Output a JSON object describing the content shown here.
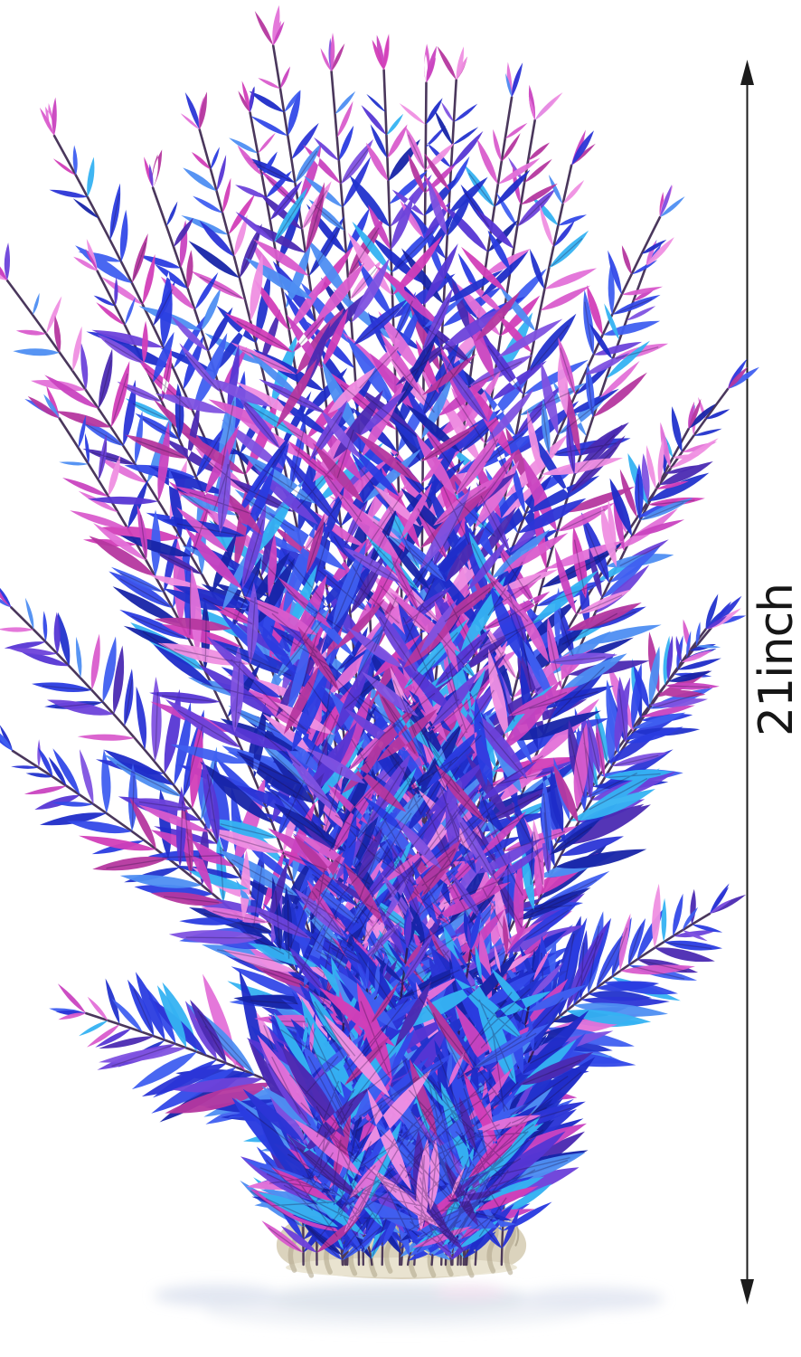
{
  "scene": {
    "background": "#ffffff",
    "subject": "Artificial aquarium plastic plant with blue, purple and pink leaves on a textured sand-colored round base"
  },
  "annotation": {
    "label": "21inch",
    "arrow_color": "#1c1c1c",
    "text_color": "#161616"
  },
  "palette": {
    "leaf_blues": [
      "#1f2cc8",
      "#2a3ce0",
      "#3349e8",
      "#1724a8",
      "#3f5ff0",
      "#2b35d6",
      "#2233cc",
      "#4e8ef2",
      "#35b2f2"
    ],
    "leaf_purples": [
      "#5636d4",
      "#6d42da",
      "#8052e0",
      "#4b2ab2"
    ],
    "leaf_pinks": [
      "#c943c0",
      "#d95ccc",
      "#e371d8",
      "#b5379f",
      "#ef8fe2",
      "#d23eb8"
    ],
    "stem": "#2a1440",
    "midrib": "rgba(30,12,60,0.30)"
  },
  "base": {
    "fill": "#dbd3bd",
    "ridge": "#b2a88e",
    "crevice": "#948a72",
    "highlight": "#eae4d2",
    "reflection_mid": "#dde3ec",
    "reflection_light": "#eef1f6"
  }
}
